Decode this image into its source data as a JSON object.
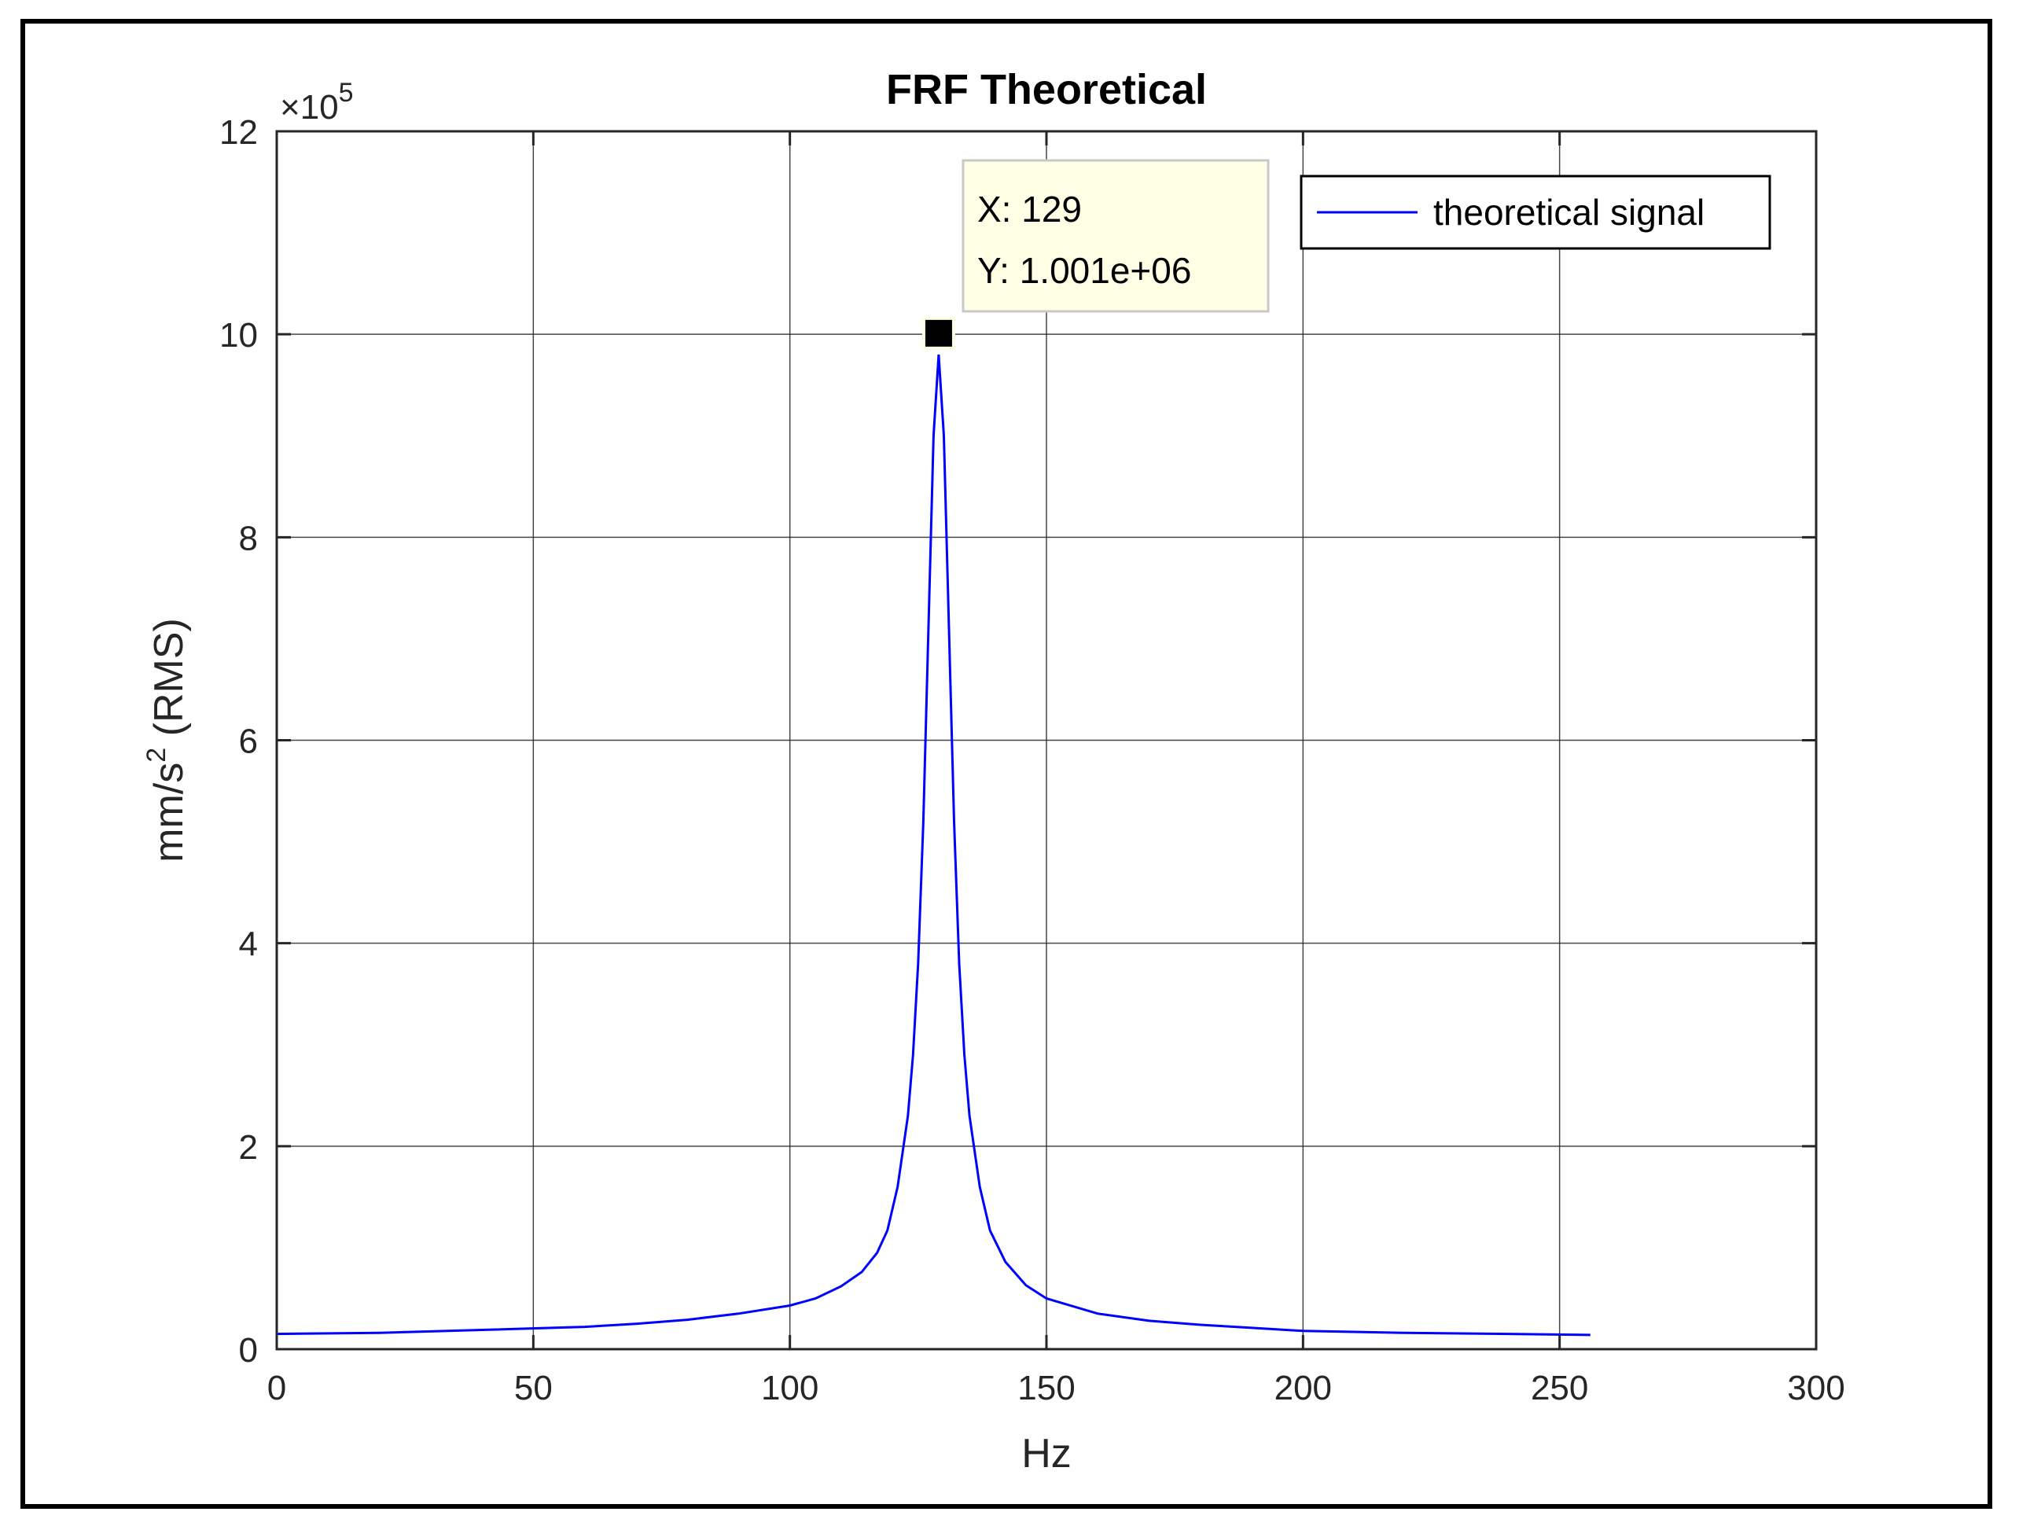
{
  "chart_data": {
    "type": "line",
    "title": "FRF Theoretical",
    "xlabel": "Hz",
    "ylabel": "mm/s",
    "ylabel_sup": "2",
    "ylabel_tail": " (RMS)",
    "xlim": [
      0,
      300
    ],
    "ylim": [
      0,
      1200000
    ],
    "xticks": [
      0,
      50,
      100,
      150,
      200,
      250,
      300
    ],
    "xtick_labels": [
      "0",
      "50",
      "100",
      "150",
      "200",
      "250",
      "300"
    ],
    "yticks": [
      0,
      200000,
      400000,
      600000,
      800000,
      1000000,
      1200000
    ],
    "ytick_labels": [
      "0",
      "2",
      "4",
      "6",
      "8",
      "10",
      "12"
    ],
    "y_multiplier": "×10",
    "y_multiplier_exp": "5",
    "grid": true,
    "legend_position": "top-right",
    "colors": {
      "series": "#0000ff",
      "grid": "#262626",
      "tooltip_bg": "#ffffe6",
      "tooltip_border": "#c8c8c8"
    },
    "series": [
      {
        "name": "theoretical signal",
        "x": [
          0,
          20,
          40,
          60,
          70,
          80,
          90,
          100,
          105,
          110,
          114,
          117,
          119,
          121,
          123,
          124,
          125,
          126,
          127,
          128,
          129,
          130,
          131,
          132,
          133,
          134,
          135,
          137,
          139,
          142,
          146,
          150,
          160,
          170,
          180,
          190,
          200,
          220,
          240,
          256
        ],
        "y": [
          15000,
          16000,
          19000,
          22000,
          25000,
          29000,
          35000,
          43000,
          50000,
          62000,
          76000,
          95000,
          117000,
          160000,
          230000,
          290000,
          380000,
          520000,
          710000,
          900000,
          980000,
          900000,
          710000,
          520000,
          380000,
          290000,
          230000,
          160000,
          117000,
          86000,
          63000,
          50000,
          35000,
          28000,
          24000,
          21000,
          18000,
          16000,
          15000,
          14000
        ]
      }
    ],
    "datatip": {
      "x": 129,
      "y": 1001000,
      "x_text": "X: 129",
      "y_text": "Y: 1.001e+06"
    }
  }
}
